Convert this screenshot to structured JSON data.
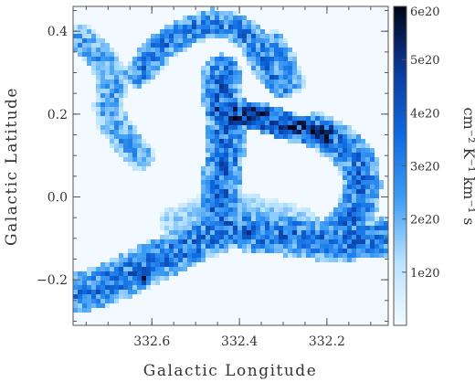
{
  "chart_data": {
    "type": "heatmap",
    "title": "",
    "xlabel": "Galactic Longitude",
    "ylabel": "Galactic Latitude",
    "xlim": [
      332.78,
      332.06
    ],
    "ylim": [
      -0.31,
      0.46
    ],
    "x_reversed": true,
    "xticks": [
      332.6,
      332.4,
      332.2
    ],
    "xtick_labels": [
      "332.6",
      "332.4",
      "332.2"
    ],
    "yticks": [
      -0.2,
      0.0,
      0.2,
      0.4
    ],
    "ytick_labels": [
      "−0.2",
      "0.0",
      "0.2",
      "0.4"
    ],
    "colorbar": {
      "label": "cm⁻² K⁻¹ km⁻¹ s",
      "range": [
        0,
        6e+20
      ],
      "ticks": [
        1e+20,
        2e+20,
        3e+20,
        4e+20,
        5e+20,
        6e+20
      ],
      "tick_labels": [
        "1e20",
        "2e20",
        "3e20",
        "4e20",
        "5e20",
        "6e20"
      ],
      "colors": [
        "#f4fbff",
        "#b8e2ff",
        "#3d9cf4",
        "#0f69e0",
        "#0a3a9c",
        "#020614"
      ]
    },
    "clouds": [
      {
        "name": "northwest-arc",
        "points": [
          [
            332.76,
            0.38
          ],
          [
            332.72,
            0.34
          ],
          [
            332.69,
            0.3
          ],
          [
            332.69,
            0.26
          ],
          [
            332.7,
            0.22
          ],
          [
            332.69,
            0.18
          ],
          [
            332.66,
            0.14
          ],
          [
            332.63,
            0.1
          ]
        ],
        "width": 0.035,
        "value": 2.4e+20
      },
      {
        "name": "north-ridge",
        "points": [
          [
            332.63,
            0.3
          ],
          [
            332.58,
            0.36
          ],
          [
            332.52,
            0.4
          ],
          [
            332.46,
            0.42
          ],
          [
            332.41,
            0.41
          ],
          [
            332.37,
            0.38
          ],
          [
            332.35,
            0.34
          ],
          [
            332.33,
            0.3
          ],
          [
            332.3,
            0.27
          ]
        ],
        "width": 0.035,
        "value": 3e+20
      },
      {
        "name": "northeast-spur",
        "points": [
          [
            332.32,
            0.37
          ],
          [
            332.3,
            0.33
          ],
          [
            332.28,
            0.28
          ]
        ],
        "width": 0.03,
        "value": 2.5e+20
      },
      {
        "name": "central-column",
        "points": [
          [
            332.44,
            0.3
          ],
          [
            332.44,
            0.24
          ],
          [
            332.43,
            0.18
          ],
          [
            332.43,
            0.12
          ],
          [
            332.44,
            0.06
          ],
          [
            332.44,
            0.0
          ],
          [
            332.45,
            -0.04
          ]
        ],
        "width": 0.045,
        "value": 3.4e+20
      },
      {
        "name": "central-bar",
        "points": [
          [
            332.44,
            0.2
          ],
          [
            332.39,
            0.2
          ],
          [
            332.34,
            0.19
          ],
          [
            332.29,
            0.17
          ],
          [
            332.24,
            0.16
          ],
          [
            332.2,
            0.15
          ]
        ],
        "width": 0.035,
        "value": 4.4e+20
      },
      {
        "name": "eastern-loop",
        "points": [
          [
            332.22,
            0.16
          ],
          [
            332.17,
            0.13
          ],
          [
            332.13,
            0.09
          ],
          [
            332.12,
            0.03
          ],
          [
            332.13,
            -0.03
          ],
          [
            332.16,
            -0.07
          ]
        ],
        "width": 0.045,
        "value": 3.2e+20
      },
      {
        "name": "southern-filament",
        "points": [
          [
            332.78,
            -0.23
          ],
          [
            332.72,
            -0.22
          ],
          [
            332.66,
            -0.19
          ],
          [
            332.6,
            -0.16
          ],
          [
            332.54,
            -0.13
          ],
          [
            332.48,
            -0.1
          ],
          [
            332.42,
            -0.07
          ],
          [
            332.36,
            -0.09
          ],
          [
            332.3,
            -0.09
          ],
          [
            332.24,
            -0.1
          ],
          [
            332.18,
            -0.11
          ],
          [
            332.12,
            -0.1
          ],
          [
            332.06,
            -0.1
          ]
        ],
        "width": 0.05,
        "value": 3.2e+20
      },
      {
        "name": "southern-fringe",
        "points": [
          [
            332.55,
            -0.06
          ],
          [
            332.48,
            -0.03
          ],
          [
            332.4,
            -0.02
          ],
          [
            332.33,
            -0.04
          ],
          [
            332.26,
            -0.06
          ]
        ],
        "width": 0.035,
        "value": 1.5e+20
      }
    ],
    "peaks": [
      {
        "l": 332.36,
        "b": 0.2,
        "value": 5.8e+20
      },
      {
        "l": 332.42,
        "b": 0.18,
        "value": 5.6e+20
      },
      {
        "l": 332.29,
        "b": 0.16,
        "value": 5e+20
      },
      {
        "l": 332.62,
        "b": -0.2,
        "value": 5.9e+20
      },
      {
        "l": 332.38,
        "b": -0.09,
        "value": 5.4e+20
      },
      {
        "l": 332.3,
        "b": -0.1,
        "value": 5e+20
      },
      {
        "l": 332.2,
        "b": 0.12,
        "value": 4.8e+20
      }
    ]
  }
}
